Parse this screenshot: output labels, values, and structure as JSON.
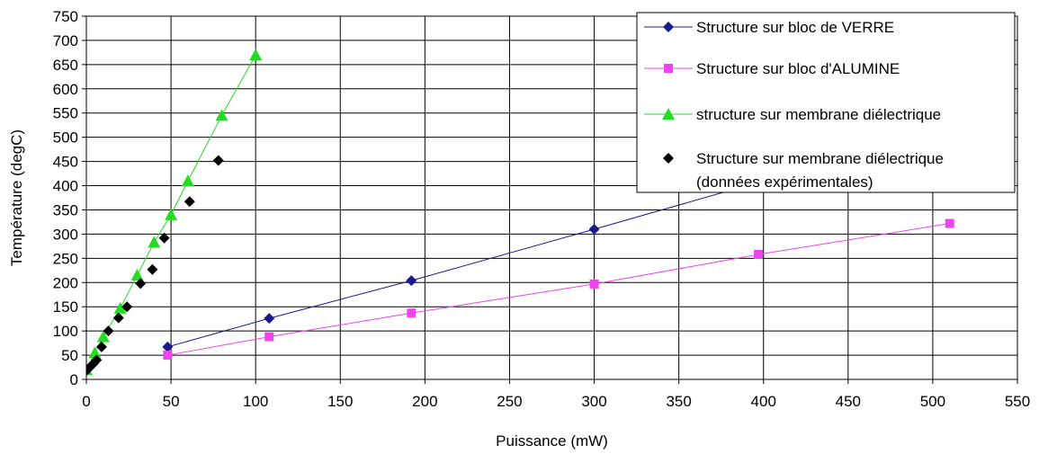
{
  "chart_data": {
    "type": "scatter",
    "xlabel": "Puissance (mW)",
    "ylabel": "Température (degC)",
    "xlim": [
      0,
      550
    ],
    "ylim": [
      0,
      750
    ],
    "xticks": [
      0,
      50,
      100,
      150,
      200,
      250,
      300,
      350,
      400,
      450,
      500,
      550
    ],
    "yticks": [
      0,
      50,
      100,
      150,
      200,
      250,
      300,
      350,
      400,
      450,
      500,
      550,
      600,
      650,
      700,
      750
    ],
    "grid": true,
    "legend_position": "top-right",
    "series": [
      {
        "name": "Structure sur bloc de VERRE",
        "color": "#1a1a8c",
        "marker": "diamond",
        "line": true,
        "x": [
          48,
          108,
          192,
          300,
          400
        ],
        "y": [
          67,
          126,
          204,
          310,
          410
        ]
      },
      {
        "name": "Structure sur bloc d'ALUMINE",
        "color": "#ee44ee",
        "marker": "square",
        "line": true,
        "x": [
          48,
          108,
          192,
          300,
          397,
          510
        ],
        "y": [
          50,
          88,
          137,
          197,
          258,
          322
        ]
      },
      {
        "name": "structure sur membrane diélectrique",
        "color": "#22dd22",
        "marker": "triangle",
        "line": true,
        "x": [
          0,
          5,
          10,
          20,
          30,
          40,
          50,
          60,
          80,
          100
        ],
        "y": [
          20,
          55,
          88,
          147,
          215,
          283,
          340,
          410,
          545,
          670
        ]
      },
      {
        "name": "Structure sur membrane diélectrique",
        "name_line2": "(données expérimentales)",
        "color": "#000000",
        "marker": "diamond",
        "line": false,
        "x": [
          0,
          2,
          4,
          6,
          9,
          13,
          19,
          24,
          32,
          39,
          46,
          61,
          78
        ],
        "y": [
          18,
          25,
          32,
          40,
          67,
          100,
          127,
          150,
          198,
          227,
          292,
          367,
          452
        ]
      }
    ]
  }
}
